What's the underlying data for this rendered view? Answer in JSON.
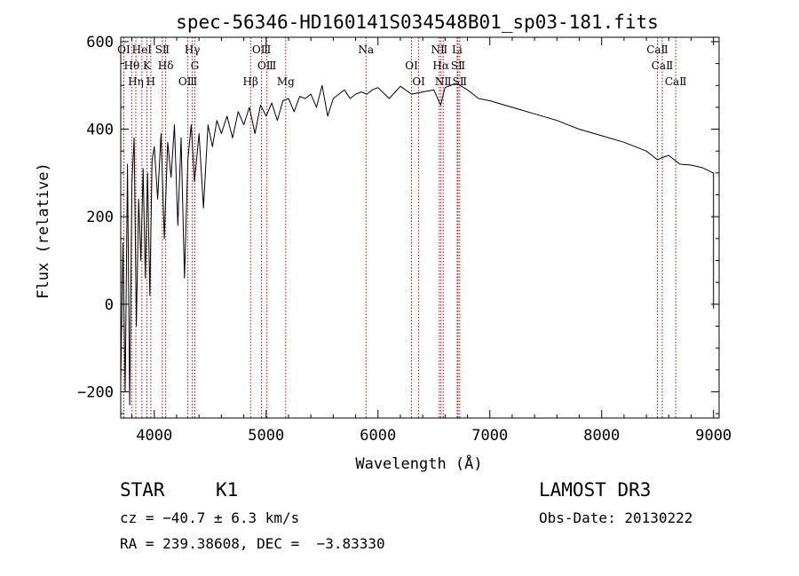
{
  "chart_data": {
    "type": "line",
    "title": "spec-56346-HD160141S034548B01_sp03-181.fits",
    "xlabel": "Wavelength (Å)",
    "ylabel": "Flux (relative)",
    "xlim": [
      3700,
      9050
    ],
    "ylim": [
      -260,
      610
    ],
    "xticks": [
      4000,
      5000,
      6000,
      7000,
      8000,
      9000
    ],
    "yticks": [
      -200,
      0,
      200,
      400,
      600
    ],
    "xtick_labels": [
      "4000",
      "5000",
      "6000",
      "7000",
      "8000",
      "9000"
    ],
    "ytick_labels": [
      "−200",
      "0",
      "200",
      "400",
      "600"
    ],
    "grid": false,
    "series": [
      {
        "name": "flux",
        "x": [
          3700,
          3720,
          3740,
          3760,
          3780,
          3800,
          3820,
          3840,
          3860,
          3880,
          3900,
          3920,
          3940,
          3960,
          3980,
          4000,
          4030,
          4060,
          4090,
          4120,
          4150,
          4180,
          4210,
          4240,
          4270,
          4300,
          4330,
          4360,
          4400,
          4440,
          4480,
          4520,
          4560,
          4600,
          4650,
          4700,
          4750,
          4800,
          4850,
          4900,
          4950,
          5000,
          5050,
          5100,
          5150,
          5200,
          5250,
          5300,
          5350,
          5400,
          5450,
          5500,
          5550,
          5600,
          5650,
          5700,
          5750,
          5800,
          5850,
          5900,
          5950,
          6000,
          6100,
          6200,
          6300,
          6400,
          6500,
          6560,
          6600,
          6700,
          6800,
          6900,
          7000,
          7200,
          7400,
          7600,
          7800,
          8000,
          8200,
          8400,
          8500,
          8540,
          8600,
          8700,
          8800,
          8900,
          9000,
          9000,
          9000
        ],
        "y": [
          -180,
          140,
          -200,
          320,
          -230,
          280,
          380,
          -50,
          240,
          100,
          310,
          60,
          300,
          20,
          330,
          360,
          240,
          390,
          150,
          370,
          290,
          410,
          180,
          380,
          60,
          330,
          410,
          280,
          390,
          220,
          410,
          360,
          420,
          390,
          430,
          380,
          440,
          410,
          450,
          390,
          455,
          430,
          460,
          420,
          465,
          470,
          440,
          475,
          470,
          480,
          450,
          500,
          430,
          470,
          480,
          490,
          470,
          480,
          485,
          480,
          490,
          495,
          470,
          498,
          480,
          485,
          490,
          455,
          495,
          505,
          490,
          470,
          465,
          450,
          435,
          420,
          400,
          385,
          370,
          350,
          330,
          335,
          340,
          320,
          318,
          312,
          300,
          80,
          -10
        ]
      }
    ],
    "lines": [
      {
        "name": "OⅠ",
        "wavelength": 3727
      },
      {
        "name": "Hθ",
        "wavelength": 3798
      },
      {
        "name": "Hη",
        "wavelength": 3835
      },
      {
        "name": "HeⅠ",
        "wavelength": 3889
      },
      {
        "name": "K",
        "wavelength": 3934
      },
      {
        "name": "H",
        "wavelength": 3969
      },
      {
        "name": "SⅡ",
        "wavelength": 4072
      },
      {
        "name": "Hδ",
        "wavelength": 4102
      },
      {
        "name": "OⅢ",
        "wavelength": 4300
      },
      {
        "name": "Hγ",
        "wavelength": 4340
      },
      {
        "name": "G",
        "wavelength": 4363
      },
      {
        "name": "Hβ",
        "wavelength": 4861
      },
      {
        "name": "OⅢ",
        "wavelength": 4959
      },
      {
        "name": "OⅢ",
        "wavelength": 5007
      },
      {
        "name": "Mg",
        "wavelength": 5175
      },
      {
        "name": "Na",
        "wavelength": 5893
      },
      {
        "name": "OⅠ",
        "wavelength": 6300
      },
      {
        "name": "OⅠ",
        "wavelength": 6364
      },
      {
        "name": "NⅡ",
        "wavelength": 6548
      },
      {
        "name": "Hα",
        "wavelength": 6563
      },
      {
        "name": "NⅡ",
        "wavelength": 6583
      },
      {
        "name": "Li",
        "wavelength": 6708
      },
      {
        "name": "SⅡ",
        "wavelength": 6716
      },
      {
        "name": "SⅡ",
        "wavelength": 6731
      },
      {
        "name": "CaⅡ",
        "wavelength": 8498
      },
      {
        "name": "CaⅡ",
        "wavelength": 8542
      },
      {
        "name": "CaⅡ",
        "wavelength": 8662
      }
    ],
    "line_colors": {
      "spectrum": "#000000",
      "markers": "#cc0000"
    }
  },
  "info": {
    "class": "STAR",
    "subclass": "K1",
    "survey": "LAMOST DR3",
    "cz": "cz = −40.7 ± 6.3 km/s",
    "obs_date": "Obs-Date: 20130222",
    "coords": "RA = 239.38608, DEC =  −3.83330"
  }
}
